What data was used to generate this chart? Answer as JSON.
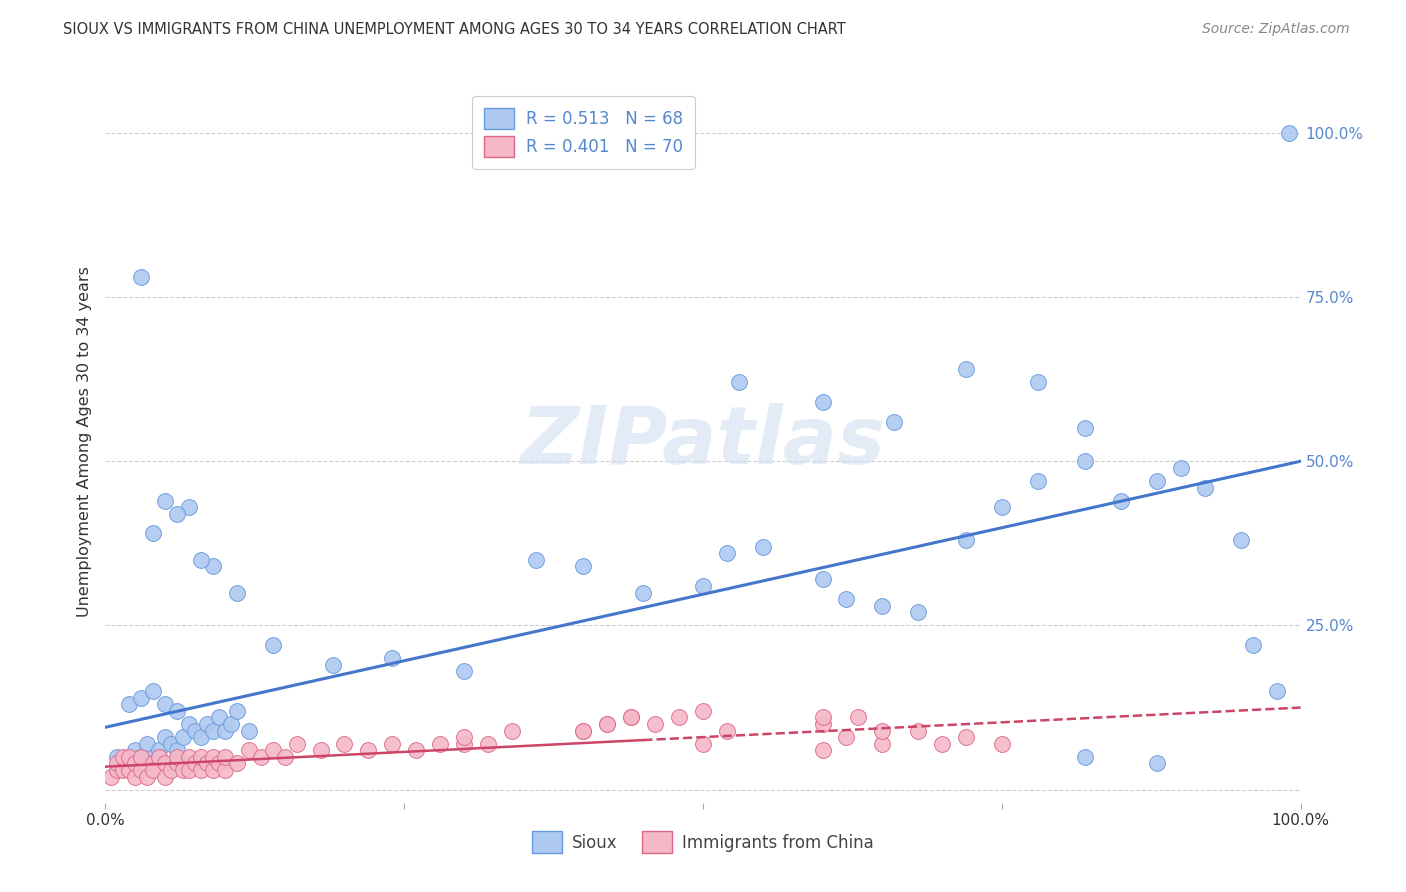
{
  "title": "SIOUX VS IMMIGRANTS FROM CHINA UNEMPLOYMENT AMONG AGES 30 TO 34 YEARS CORRELATION CHART",
  "source": "Source: ZipAtlas.com",
  "ylabel": "Unemployment Among Ages 30 to 34 years",
  "sioux_color": "#adc9f0",
  "sioux_edge_color": "#6699dd",
  "sioux_line_color": "#4477cc",
  "china_color": "#f5b8c8",
  "china_edge_color": "#dd6688",
  "china_line_color": "#cc4466",
  "watermark_color": "#d0dff0",
  "background_color": "#ffffff",
  "grid_color": "#bbbbbb",
  "right_tick_color": "#5588cc",
  "legend1_R1": "R = 0.513",
  "legend1_N1": "N = 68",
  "legend1_R2": "R = 0.401",
  "legend1_N2": "N = 70",
  "sioux_x": [
    0.01,
    0.02,
    0.025,
    0.03,
    0.035,
    0.04,
    0.045,
    0.05,
    0.055,
    0.06,
    0.065,
    0.07,
    0.075,
    0.08,
    0.085,
    0.09,
    0.095,
    0.1,
    0.105,
    0.11,
    0.12,
    0.02,
    0.03,
    0.04,
    0.05,
    0.06,
    0.03,
    0.05,
    0.07,
    0.09,
    0.11,
    0.04,
    0.06,
    0.08,
    0.14,
    0.19,
    0.24,
    0.3,
    0.36,
    0.4,
    0.45,
    0.5,
    0.52,
    0.55,
    0.6,
    0.62,
    0.65,
    0.68,
    0.72,
    0.75,
    0.78,
    0.82,
    0.85,
    0.88,
    0.9,
    0.92,
    0.95,
    0.72,
    0.78,
    0.82,
    0.53,
    0.6,
    0.66,
    0.96,
    0.98,
    0.82,
    0.88,
    0.99
  ],
  "sioux_y": [
    0.05,
    0.04,
    0.06,
    0.05,
    0.07,
    0.05,
    0.06,
    0.08,
    0.07,
    0.06,
    0.08,
    0.1,
    0.09,
    0.08,
    0.1,
    0.09,
    0.11,
    0.09,
    0.1,
    0.12,
    0.09,
    0.13,
    0.14,
    0.15,
    0.13,
    0.12,
    0.78,
    0.44,
    0.43,
    0.34,
    0.3,
    0.39,
    0.42,
    0.35,
    0.22,
    0.19,
    0.2,
    0.18,
    0.35,
    0.34,
    0.3,
    0.31,
    0.36,
    0.37,
    0.32,
    0.29,
    0.28,
    0.27,
    0.38,
    0.43,
    0.47,
    0.5,
    0.44,
    0.47,
    0.49,
    0.46,
    0.38,
    0.64,
    0.62,
    0.55,
    0.62,
    0.59,
    0.56,
    0.22,
    0.15,
    0.05,
    0.04,
    1.0
  ],
  "china_x": [
    0.005,
    0.01,
    0.01,
    0.015,
    0.015,
    0.02,
    0.02,
    0.025,
    0.025,
    0.03,
    0.03,
    0.035,
    0.04,
    0.04,
    0.045,
    0.05,
    0.05,
    0.055,
    0.06,
    0.06,
    0.065,
    0.07,
    0.07,
    0.075,
    0.08,
    0.08,
    0.085,
    0.09,
    0.09,
    0.095,
    0.1,
    0.1,
    0.11,
    0.12,
    0.13,
    0.14,
    0.15,
    0.16,
    0.18,
    0.2,
    0.22,
    0.24,
    0.26,
    0.28,
    0.3,
    0.3,
    0.32,
    0.34,
    0.4,
    0.42,
    0.44,
    0.5,
    0.52,
    0.6,
    0.62,
    0.65,
    0.7,
    0.72,
    0.75,
    0.6,
    0.63,
    0.65,
    0.68,
    0.4,
    0.42,
    0.44,
    0.46,
    0.48,
    0.5,
    0.6
  ],
  "china_y": [
    0.02,
    0.03,
    0.04,
    0.03,
    0.05,
    0.03,
    0.05,
    0.02,
    0.04,
    0.03,
    0.05,
    0.02,
    0.04,
    0.03,
    0.05,
    0.02,
    0.04,
    0.03,
    0.04,
    0.05,
    0.03,
    0.05,
    0.03,
    0.04,
    0.03,
    0.05,
    0.04,
    0.03,
    0.05,
    0.04,
    0.03,
    0.05,
    0.04,
    0.06,
    0.05,
    0.06,
    0.05,
    0.07,
    0.06,
    0.07,
    0.06,
    0.07,
    0.06,
    0.07,
    0.07,
    0.08,
    0.07,
    0.09,
    0.09,
    0.1,
    0.11,
    0.07,
    0.09,
    0.06,
    0.08,
    0.07,
    0.07,
    0.08,
    0.07,
    0.1,
    0.11,
    0.09,
    0.09,
    0.09,
    0.1,
    0.11,
    0.1,
    0.11,
    0.12,
    0.11
  ],
  "sioux_line": [
    0.0,
    1.0,
    0.095,
    0.5
  ],
  "china_line": [
    0.0,
    1.0,
    0.035,
    0.125
  ],
  "y_ticks": [
    0.0,
    0.25,
    0.5,
    0.75,
    1.0
  ],
  "y_tick_labels": [
    "",
    "25.0%",
    "50.0%",
    "75.0%",
    "100.0%"
  ],
  "x_ticks": [
    0.0,
    0.25,
    0.5,
    0.75,
    1.0
  ],
  "x_tick_labels_left": "0.0%",
  "x_tick_labels_right": "100.0%"
}
